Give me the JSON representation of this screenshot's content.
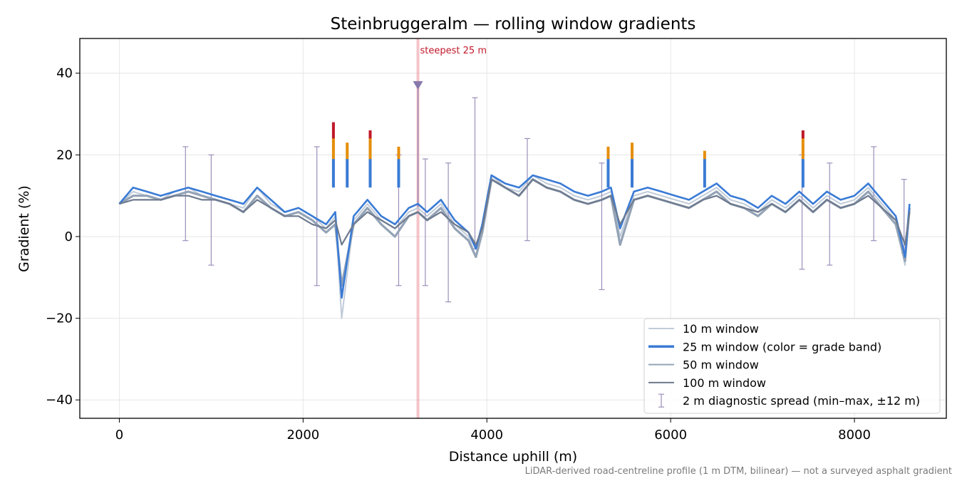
{
  "chart_data": {
    "type": "line",
    "title": "Steinbruggeralm — rolling window gradients",
    "xlabel": "Distance uphill (m)",
    "ylabel": "Gradient (%)",
    "xlim": [
      -430,
      9000
    ],
    "ylim": [
      -44.5,
      48.5
    ],
    "xticks": [
      0,
      2000,
      4000,
      6000,
      8000
    ],
    "xtick_labels": [
      "0",
      "2000",
      "4000",
      "6000",
      "8000"
    ],
    "yticks": [
      40,
      20,
      0,
      -20,
      -40
    ],
    "ytick_labels": [
      "40",
      "20",
      "0",
      "−20",
      "−40"
    ],
    "grid": true,
    "legend_position": "lower-right",
    "colors": {
      "w10": "#c0cbd8",
      "w25": "#3a7bd5",
      "w50": "#94a3b6",
      "w100": "#6e7a8e",
      "band_orange": "#e58e0a",
      "band_red": "#c0182a",
      "spread": "#9c8fba",
      "marker": "#8878ab",
      "steep_line": "#ef9ba3"
    },
    "steepest": {
      "x": 3250,
      "label": "steepest 25 m",
      "marker_y": 37
    },
    "series": [
      {
        "name": "10 m window",
        "key": "w10",
        "x": [
          0,
          150,
          300,
          450,
          600,
          750,
          900,
          1050,
          1200,
          1350,
          1500,
          1650,
          1800,
          1950,
          2100,
          2250,
          2350,
          2420,
          2550,
          2700,
          2850,
          3000,
          3150,
          3250,
          3350,
          3500,
          3650,
          3800,
          3880,
          3950,
          4050,
          4200,
          4350,
          4500,
          4650,
          4800,
          4950,
          5100,
          5250,
          5350,
          5450,
          5600,
          5750,
          5900,
          6050,
          6200,
          6350,
          6500,
          6650,
          6800,
          6950,
          7100,
          7250,
          7400,
          7550,
          7700,
          7850,
          8000,
          8150,
          8300,
          8450,
          8550,
          8600
        ],
        "y": [
          8,
          11,
          10,
          9,
          11,
          12,
          10,
          9,
          8,
          7,
          12,
          8,
          6,
          7,
          5,
          2,
          5,
          -20,
          4,
          8,
          4,
          2,
          6,
          7,
          5,
          8,
          3,
          0,
          -5,
          2,
          15,
          12,
          11,
          15,
          13,
          12,
          10,
          9,
          10,
          11,
          0,
          10,
          11,
          10,
          9,
          8,
          10,
          12,
          9,
          8,
          6,
          9,
          7,
          10,
          7,
          10,
          8,
          9,
          12,
          8,
          4,
          -7,
          8
        ]
      },
      {
        "name": "25 m window (color = grade band)",
        "key": "w25",
        "x": [
          0,
          150,
          300,
          450,
          600,
          750,
          900,
          1050,
          1200,
          1350,
          1500,
          1650,
          1800,
          1950,
          2100,
          2250,
          2350,
          2420,
          2550,
          2700,
          2850,
          3000,
          3150,
          3250,
          3350,
          3500,
          3650,
          3800,
          3880,
          3950,
          4050,
          4200,
          4350,
          4500,
          4650,
          4800,
          4950,
          5100,
          5250,
          5350,
          5450,
          5600,
          5750,
          5900,
          6050,
          6200,
          6350,
          6500,
          6650,
          6800,
          6950,
          7100,
          7250,
          7400,
          7550,
          7700,
          7850,
          8000,
          8150,
          8300,
          8450,
          8550,
          8600
        ],
        "y": [
          8,
          12,
          11,
          10,
          11,
          12,
          11,
          10,
          9,
          8,
          12,
          9,
          6,
          7,
          5,
          3,
          6,
          -15,
          5,
          9,
          5,
          3,
          7,
          8,
          6,
          9,
          4,
          1,
          -3,
          3,
          15,
          13,
          12,
          15,
          14,
          13,
          11,
          10,
          11,
          12,
          2,
          11,
          12,
          11,
          10,
          9,
          11,
          13,
          10,
          9,
          7,
          10,
          8,
          11,
          8,
          11,
          9,
          10,
          13,
          9,
          5,
          -5,
          8
        ]
      },
      {
        "name": "50 m window",
        "key": "w50",
        "x": [
          0,
          150,
          300,
          450,
          600,
          750,
          900,
          1050,
          1200,
          1350,
          1500,
          1650,
          1800,
          1950,
          2100,
          2250,
          2350,
          2420,
          2550,
          2700,
          2850,
          3000,
          3150,
          3250,
          3350,
          3500,
          3650,
          3800,
          3880,
          3950,
          4050,
          4200,
          4350,
          4500,
          4650,
          4800,
          4950,
          5100,
          5250,
          5350,
          5450,
          5600,
          5750,
          5900,
          6050,
          6200,
          6350,
          6500,
          6650,
          6800,
          6950,
          7100,
          7250,
          7400,
          7550,
          7700,
          7850,
          8000,
          8150,
          8300,
          8450,
          8550,
          8600
        ],
        "y": [
          8,
          10,
          10,
          9,
          10,
          11,
          10,
          9,
          8,
          6,
          10,
          7,
          5,
          6,
          4,
          1,
          3,
          -12,
          3,
          7,
          3,
          0,
          5,
          6,
          4,
          7,
          2,
          -1,
          -5,
          1,
          14,
          12,
          10,
          14,
          12,
          11,
          9,
          8,
          9,
          10,
          -2,
          9,
          10,
          9,
          8,
          7,
          9,
          11,
          8,
          7,
          5,
          8,
          6,
          9,
          6,
          9,
          7,
          8,
          11,
          7,
          3,
          -6,
          7
        ]
      },
      {
        "name": "100 m window",
        "key": "w100",
        "x": [
          0,
          150,
          300,
          450,
          600,
          750,
          900,
          1050,
          1200,
          1350,
          1500,
          1650,
          1800,
          1950,
          2100,
          2250,
          2350,
          2420,
          2550,
          2700,
          2850,
          3000,
          3150,
          3250,
          3350,
          3500,
          3650,
          3800,
          3880,
          3950,
          4050,
          4200,
          4350,
          4500,
          4650,
          4800,
          4950,
          5100,
          5250,
          5350,
          5450,
          5600,
          5750,
          5900,
          6050,
          6200,
          6350,
          6500,
          6650,
          6800,
          6950,
          7100,
          7250,
          7400,
          7550,
          7700,
          7850,
          8000,
          8150,
          8300,
          8450,
          8550,
          8600
        ],
        "y": [
          8,
          9,
          9,
          9,
          10,
          10,
          9,
          9,
          8,
          6,
          9,
          7,
          5,
          5,
          3,
          2,
          4,
          -2,
          3,
          6,
          4,
          2,
          5,
          6,
          4,
          6,
          3,
          1,
          -2,
          2,
          14,
          12,
          10,
          14,
          12,
          11,
          9,
          8,
          9,
          10,
          3,
          9,
          10,
          9,
          8,
          7,
          9,
          10,
          8,
          7,
          6,
          8,
          6,
          9,
          6,
          9,
          7,
          8,
          10,
          7,
          4,
          -2,
          6
        ]
      }
    ],
    "peaks_25m": [
      {
        "x": 2330,
        "y": 28,
        "band": "red"
      },
      {
        "x": 2480,
        "y": 23,
        "band": "orange"
      },
      {
        "x": 2730,
        "y": 26,
        "band": "red"
      },
      {
        "x": 3040,
        "y": 22,
        "band": "orange"
      },
      {
        "x": 5320,
        "y": 22,
        "band": "orange"
      },
      {
        "x": 5580,
        "y": 23,
        "band": "orange"
      },
      {
        "x": 6370,
        "y": 21,
        "band": "orange"
      },
      {
        "x": 7440,
        "y": 26,
        "band": "red"
      }
    ],
    "spread_bars": [
      {
        "x": 720,
        "low": -1,
        "high": 22
      },
      {
        "x": 1000,
        "low": -7,
        "high": 20
      },
      {
        "x": 2150,
        "low": -12,
        "high": 22
      },
      {
        "x": 3040,
        "low": -12,
        "high": 20
      },
      {
        "x": 3330,
        "low": -12,
        "high": 19
      },
      {
        "x": 3580,
        "low": -16,
        "high": 18
      },
      {
        "x": 3870,
        "low": -3,
        "high": 34
      },
      {
        "x": 4440,
        "low": -1,
        "high": 24
      },
      {
        "x": 5250,
        "low": -13,
        "high": 18
      },
      {
        "x": 7430,
        "low": -8,
        "high": 20
      },
      {
        "x": 7730,
        "low": -7,
        "high": 18
      },
      {
        "x": 8210,
        "low": -1,
        "high": 22
      },
      {
        "x": 8540,
        "low": -4,
        "high": 14
      }
    ],
    "legend": [
      {
        "label": "10 m window",
        "key": "w10"
      },
      {
        "label": "25 m window (color = grade band)",
        "key": "w25"
      },
      {
        "label": "50 m window",
        "key": "w50"
      },
      {
        "label": "100 m window",
        "key": "w100"
      },
      {
        "label": "2 m diagnostic spread (min–max, ±12 m)",
        "key": "spread"
      }
    ],
    "footnote": "LiDAR-derived road-centreline profile (1 m DTM, bilinear) — not a surveyed asphalt gradient"
  }
}
